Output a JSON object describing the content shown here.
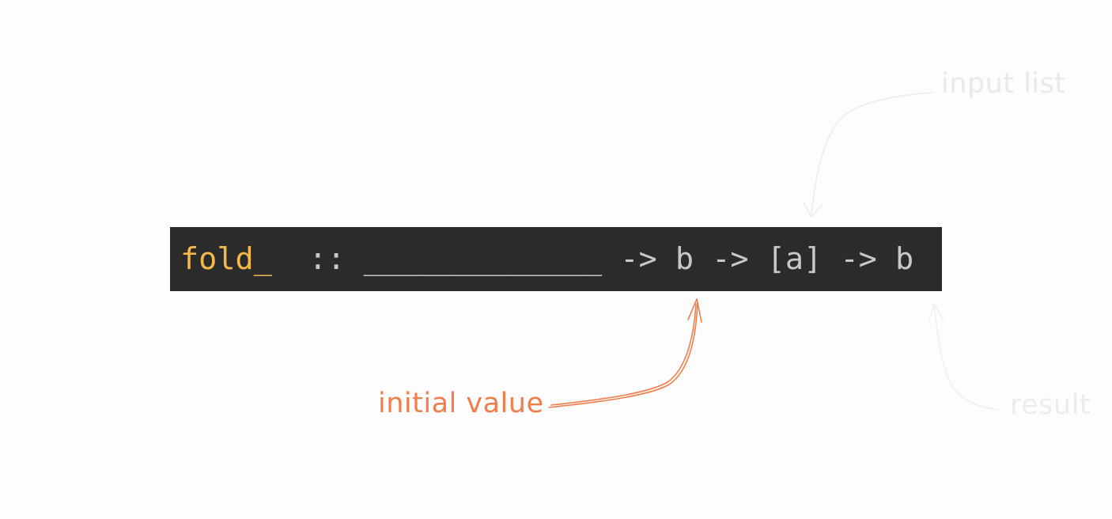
{
  "code": {
    "function_name": "fold_",
    "signature_rest": "  :: _____________ -> b -> [a] -> b"
  },
  "annotations": {
    "initial_value": "initial value",
    "input_list": "input list",
    "result": "result"
  },
  "colors": {
    "code_background": "#2b2b2b",
    "function_name": "#f5b94a",
    "code_text": "#c8c8c8",
    "initial_value_annotation": "#f07d4a",
    "faded_annotation": "#e9e9e9"
  }
}
